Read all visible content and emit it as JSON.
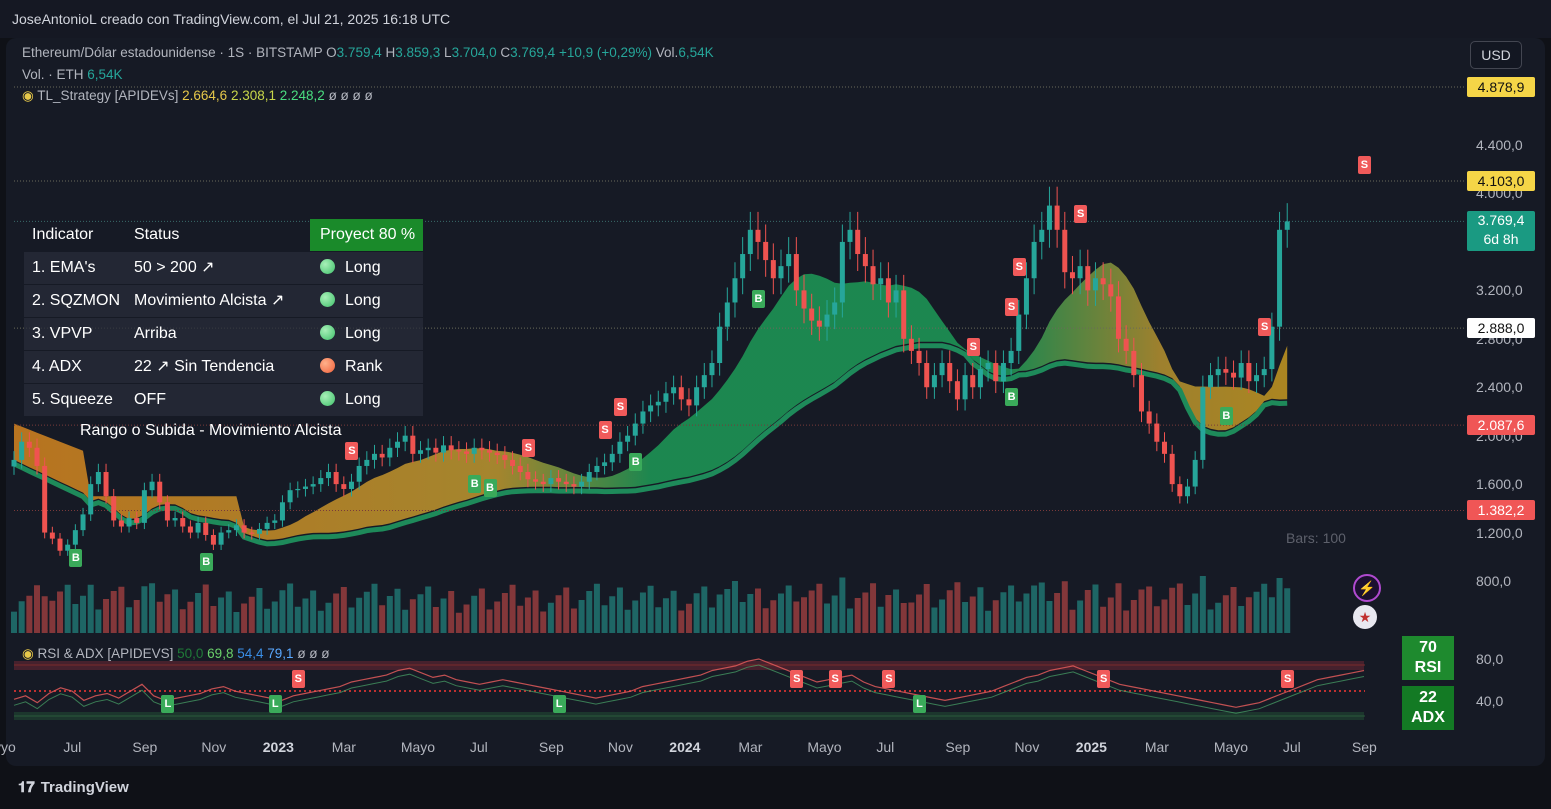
{
  "header": {
    "caption": "JoseAntonioL creado con TradingView.com, el Jul 21, 2025 16:18 UTC"
  },
  "symbol": {
    "name": "Ethereum/Dólar estadounidense · 1S · BITSTAMP",
    "o_label": "O",
    "o": "3.759,4",
    "h_label": "H",
    "h": "3.859,3",
    "l_label": "L",
    "l": "3.704,0",
    "c_label": "C",
    "c": "3.769,4",
    "change": "+10,9 (+0,29%)",
    "vol_label": "Vol.",
    "vol": "6,54K"
  },
  "volume_line": {
    "label": "Vol. · ETH",
    "value": "6,54K"
  },
  "indicator_line": {
    "name": "TL_Strategy [APIDEVs]",
    "v1": "2.664,6",
    "v2": "2.308,1",
    "v3": "2.248,2",
    "empty": "ø  ø  ø  ø"
  },
  "currency_button": "USD",
  "panel": {
    "head_indicator": "Indicator",
    "head_status": "Status",
    "head_proj": "Proyect 80 %",
    "rows": [
      {
        "ind": "1. EMA's",
        "status": "50 > 200 ↗",
        "signal": "Long",
        "color": "green"
      },
      {
        "ind": "2. SQZMON",
        "status": "Movimiento Alcista ↗",
        "signal": "Long",
        "color": "green"
      },
      {
        "ind": "3. VPVP",
        "status": "Arriba",
        "signal": "Long",
        "color": "green"
      },
      {
        "ind": "4. ADX",
        "status": "22 ↗ Sin Tendencia",
        "signal": "Rank",
        "color": "orange"
      },
      {
        "ind": "5. Squeeze",
        "status": "OFF",
        "signal": "Long",
        "color": "green"
      }
    ],
    "footer": "Rango o Subida - Movimiento Alcista"
  },
  "price_labels": [
    {
      "text": "4.878,9",
      "sub": "",
      "style": "yellow",
      "value": 4878.9
    },
    {
      "text": "4.103,0",
      "sub": "",
      "style": "yellow",
      "value": 4103.0
    },
    {
      "text": "3.769,4",
      "sub": "6d 8h",
      "style": "teal",
      "value": 3769.4
    },
    {
      "text": "2.888,0",
      "sub": "",
      "style": "white",
      "value": 2888.0
    },
    {
      "text": "2.087,6",
      "sub": "",
      "style": "red",
      "value": 2087.6
    },
    {
      "text": "1.382,2",
      "sub": "",
      "style": "red",
      "value": 1382.2
    }
  ],
  "colors": {
    "up": "#26a69a",
    "down": "#ef5350",
    "yellow": "#f5d547",
    "teal": "#1a9a82",
    "red": "#f05656",
    "cloud_green": "#1ea25a",
    "cloud_orange": "#e08a1e"
  },
  "chart_data": {
    "type": "line",
    "title": "Ethereum/Dólar estadounidense · 1S · BITSTAMP",
    "xlabel": "",
    "ylabel": "USD",
    "ylim": [
      600,
      5000
    ],
    "yticks": [
      "4.400,0",
      "4.000,0",
      "3.200,0",
      "2.800,0",
      "2.400,0",
      "2.000,0",
      "1.600,0",
      "1.200,0",
      "800,0"
    ],
    "ytick_values": [
      4400,
      4000,
      3200,
      2800,
      2400,
      2000,
      1600,
      1200,
      800
    ],
    "x_labels": [
      "Jul",
      "Sep",
      "Nov",
      "2023",
      "Mar",
      "Mayo",
      "Jul",
      "Sep",
      "Nov",
      "2024",
      "Mar",
      "Mayo",
      "Jul",
      "Sep",
      "Nov",
      "2025",
      "Mar",
      "Mayo",
      "Jul",
      "Sep"
    ],
    "x_partial_label": "yyo",
    "x_label_weeks": [
      8,
      17,
      26,
      34,
      43,
      52,
      61,
      70,
      79,
      87,
      96,
      105,
      114,
      123,
      132,
      140,
      149,
      158,
      167,
      176
    ],
    "close_series": [
      1800,
      1950,
      1900,
      1750,
      1200,
      1150,
      1050,
      1100,
      1220,
      1350,
      1600,
      1700,
      1500,
      1300,
      1250,
      1320,
      1280,
      1550,
      1620,
      1450,
      1300,
      1320,
      1250,
      1200,
      1280,
      1180,
      1100,
      1200,
      1220,
      1260,
      1200,
      1190,
      1230,
      1280,
      1300,
      1450,
      1550,
      1560,
      1580,
      1600,
      1650,
      1700,
      1600,
      1560,
      1620,
      1750,
      1800,
      1850,
      1820,
      1900,
      1950,
      2000,
      1850,
      1880,
      1900,
      1860,
      1920,
      1880,
      1870,
      1850,
      1900,
      1880,
      1860,
      1840,
      1800,
      1750,
      1700,
      1640,
      1620,
      1600,
      1650,
      1620,
      1600,
      1580,
      1620,
      1700,
      1750,
      1780,
      1850,
      1950,
      2000,
      2100,
      2200,
      2250,
      2280,
      2350,
      2400,
      2300,
      2250,
      2400,
      2500,
      2600,
      2900,
      3100,
      3300,
      3500,
      3700,
      3600,
      3450,
      3300,
      3400,
      3500,
      3200,
      3050,
      2950,
      2900,
      3000,
      3100,
      3600,
      3700,
      3500,
      3400,
      3250,
      3300,
      3100,
      3200,
      2800,
      2700,
      2600,
      2400,
      2500,
      2600,
      2450,
      2300,
      2500,
      2400,
      2550,
      2600,
      2450,
      2600,
      2700,
      3000,
      3300,
      3600,
      3700,
      3900,
      3700,
      3350,
      3300,
      3400,
      3200,
      3300,
      3250,
      3150,
      2800,
      2700,
      2500,
      2200,
      2100,
      1950,
      1850,
      1600,
      1500,
      1580,
      1800,
      2400,
      2500,
      2550,
      2520,
      2480,
      2600,
      2450,
      2500,
      2550,
      2900,
      3700,
      3769.4
    ],
    "series": [
      {
        "name": "TL_Strategy fast",
        "value": 2664.6
      },
      {
        "name": "TL_Strategy mid",
        "value": 2308.1
      },
      {
        "name": "TL_Strategy slow",
        "value": 2248.2
      }
    ],
    "signals_s_weeks": [
      44,
      67,
      77,
      79,
      125,
      130,
      131,
      139,
      163,
      176
    ],
    "signals_b_weeks": [
      8,
      25,
      60,
      62,
      81,
      97,
      130,
      158
    ]
  },
  "volume": {
    "note": "Bars: 100"
  },
  "rsi_panel": {
    "legend_name": "RSI & ADX [APIDEVS]",
    "v1": "50,0",
    "v2": "69,8",
    "v3": "54,4",
    "v4": "79,1",
    "empty": "ø  ø  ø",
    "yticks": [
      "80,0",
      "40,0"
    ],
    "rsi_value": "70",
    "rsi_label": "RSI",
    "adx_value": "22",
    "adx_label": "ADX",
    "markers_l_weeks": [
      20,
      34,
      71,
      118
    ],
    "markers_s_weeks": [
      37,
      102,
      107,
      114,
      142,
      166
    ],
    "rsi_series": [
      45,
      48,
      42,
      50,
      55,
      52,
      44,
      48,
      50,
      46,
      52,
      58,
      48,
      44,
      46,
      48,
      50,
      54,
      56,
      52,
      50,
      48,
      46,
      44,
      48,
      50,
      52,
      54,
      56,
      60,
      62,
      64,
      66,
      70,
      72,
      68,
      64,
      66,
      62,
      60,
      58,
      60,
      62,
      60,
      58,
      56,
      54,
      52,
      50,
      48,
      46,
      48,
      50,
      52,
      56,
      58,
      60,
      62,
      64,
      66,
      70,
      72,
      74,
      78,
      80,
      76,
      72,
      68,
      64,
      60,
      62,
      64,
      66,
      60,
      56,
      54,
      52,
      50,
      48,
      46,
      44,
      46,
      48,
      50,
      52,
      56,
      60,
      64,
      66,
      70,
      72,
      74,
      70,
      66,
      62,
      58,
      56,
      54,
      52,
      50,
      48,
      46,
      44,
      42,
      40,
      38,
      40,
      42,
      46,
      50,
      54,
      58,
      62,
      64,
      66,
      68,
      70
    ]
  },
  "bars_label": "Bars: 100",
  "footer_logo": "TradingView"
}
